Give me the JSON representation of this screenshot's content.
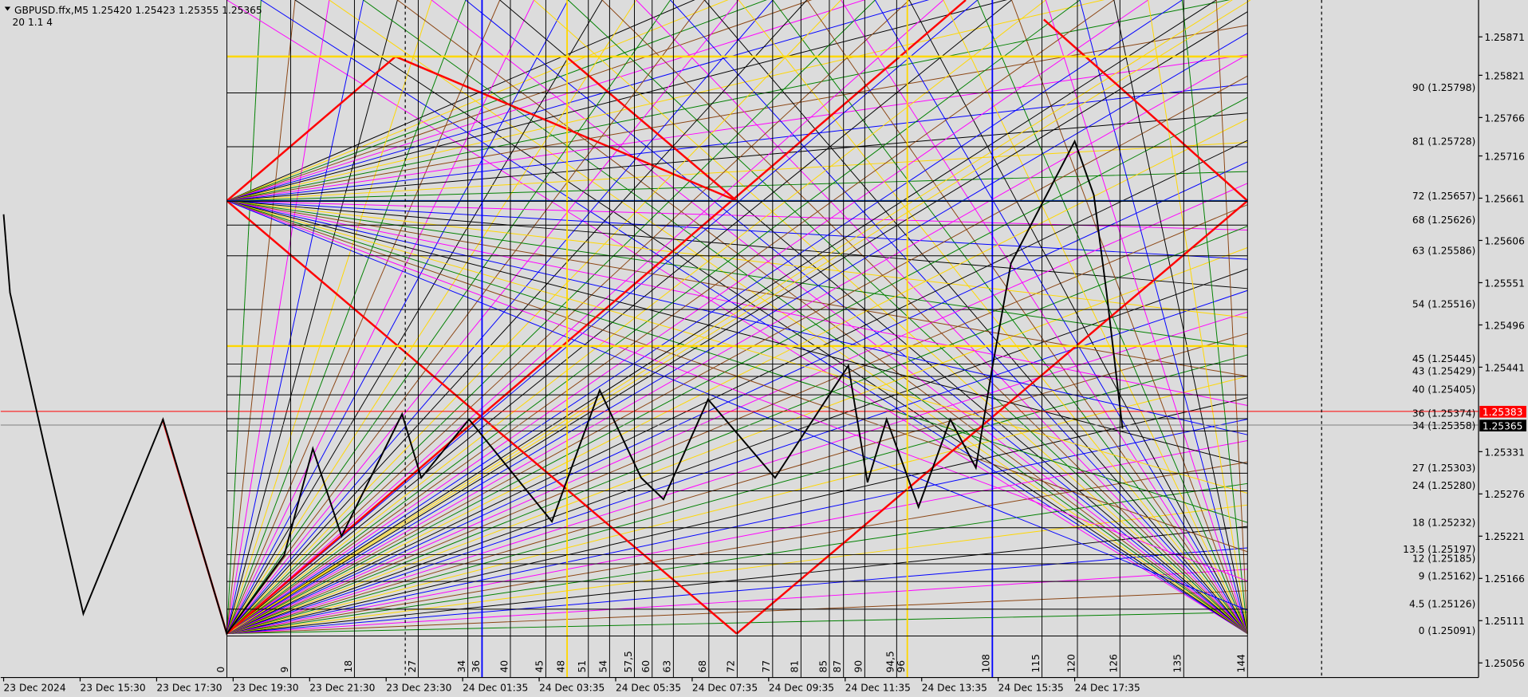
{
  "header": {
    "title": "GBPUSD.ffx,M5  1.25420 1.25423 1.25355 1.25365",
    "subtitle": "20  1.1  4"
  },
  "chart_data": {
    "type": "line",
    "ylim": [
      1.25037,
      1.25919
    ],
    "yticks": [
      1.25871,
      1.25821,
      1.25766,
      1.25716,
      1.25661,
      1.25606,
      1.25551,
      1.25496,
      1.25441,
      1.25331,
      1.25276,
      1.25221,
      1.25166,
      1.25111,
      1.25056
    ],
    "time_labels": [
      "23 Dec 2024",
      "23 Dec 15:30",
      "23 Dec 17:30",
      "23 Dec 19:30",
      "23 Dec 21:30",
      "23 Dec 23:30",
      "24 Dec 01:35",
      "24 Dec 03:35",
      "24 Dec 05:35",
      "24 Dec 07:35",
      "24 Dec 09:35",
      "24 Dec 11:35",
      "24 Dec 13:35",
      "24 Dec 15:35",
      "24 Dec 17:35"
    ],
    "zigzag": {
      "bars": [
        0,
        2,
        13,
        25,
        50,
        70,
        88,
        97,
        106,
        125,
        131,
        146,
        172,
        187,
        200,
        207,
        221,
        242,
        265,
        271,
        277,
        287,
        297,
        305,
        310,
        316,
        324,
        336,
        342,
        346,
        351
      ],
      "prices": [
        1.2564,
        1.25538,
        1.25335,
        1.2512,
        1.25373,
        1.25094,
        1.25196,
        1.25335,
        1.25221,
        1.2538,
        1.25297,
        1.25373,
        1.2524,
        1.25411,
        1.25297,
        1.25269,
        1.25399,
        1.25297,
        1.25443,
        1.25291,
        1.25373,
        1.25259,
        1.25373,
        1.2531,
        1.25437,
        1.25576,
        1.2564,
        1.25735,
        1.25665,
        1.25538,
        1.25361
      ]
    },
    "gann_numbers": [
      0,
      9,
      18,
      27,
      34,
      36,
      40,
      45,
      48,
      51,
      54,
      {
        "value": 57.5,
        "label": "57,5"
      },
      60,
      63,
      68,
      72,
      77,
      81,
      85,
      87,
      90,
      {
        "value": 94.5,
        "label": "94,5"
      },
      96,
      108,
      115,
      120,
      126,
      135,
      144
    ],
    "levels": [
      {
        "value": 1.25798,
        "label": "90 (1.25798)"
      },
      {
        "value": 1.25728,
        "label": "81 (1.25728)"
      },
      {
        "value": 1.25657,
        "label": "72 (1.25657)"
      },
      {
        "value": 1.25626,
        "label": "68 (1.25626)"
      },
      {
        "value": 1.25586,
        "label": "63 (1.25586)"
      },
      {
        "value": 1.25516,
        "label": "54 (1.25516)"
      },
      {
        "value": 1.25445,
        "label": "45 (1.25445)"
      },
      {
        "value": 1.25429,
        "label": "43 (1.25429)"
      },
      {
        "value": 1.25405,
        "label": "40 (1.25405)"
      },
      {
        "value": 1.25374,
        "label": "36 (1.25374)"
      },
      {
        "value": 1.25358,
        "label": "34 (1.25358)"
      },
      {
        "value": 1.25303,
        "label": "27 (1.25303)"
      },
      {
        "value": 1.2528,
        "label": "24 (1.25280)"
      },
      {
        "value": 1.25232,
        "label": "18 (1.25232)"
      },
      {
        "value": 1.25197,
        "label": "13.5 (1.25197)"
      },
      {
        "value": 1.25185,
        "label": "12 (1.25185)"
      },
      {
        "value": 1.25162,
        "label": "9 (1.25162)"
      },
      {
        "value": 1.25126,
        "label": "4.5 (1.25126)"
      },
      {
        "value": 1.25091,
        "label": "0 (1.25091)"
      }
    ],
    "bid": {
      "value": 1.25365,
      "color": "#000000"
    },
    "ask": {
      "value": 1.25383,
      "color": "#ff0000"
    }
  }
}
